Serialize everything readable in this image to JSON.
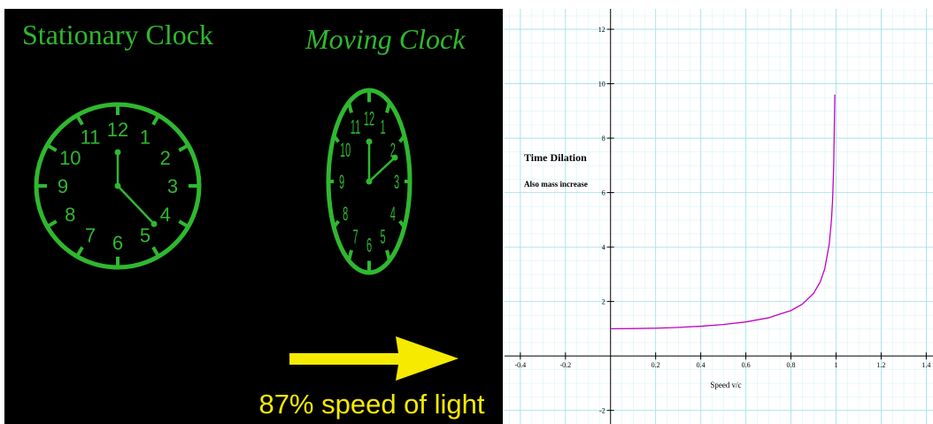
{
  "left_panel": {
    "stationary_title": "Stationary Clock",
    "moving_title": "Moving Clock",
    "numerals": [
      "12",
      "1",
      "2",
      "3",
      "4",
      "5",
      "6",
      "7",
      "8",
      "9",
      "10",
      "11"
    ],
    "caption": "87% speed of light"
  },
  "chart_data": {
    "type": "line",
    "title": "Time Dilation",
    "subtitle": "Also mass increase",
    "x_label": "Speed v/c",
    "x": [
      0,
      0.1,
      0.2,
      0.3,
      0.4,
      0.5,
      0.6,
      0.7,
      0.8,
      0.85,
      0.9,
      0.93,
      0.95,
      0.97,
      0.98,
      0.985,
      0.99,
      0.9946
    ],
    "series": [
      {
        "color": "#c400c4",
        "values": [
          1,
          1.005,
          1.021,
          1.048,
          1.091,
          1.155,
          1.25,
          1.4,
          1.667,
          1.898,
          2.294,
          2.721,
          3.203,
          4.113,
          5.025,
          5.795,
          7.089,
          9.6
        ]
      }
    ],
    "xlim": [
      -0.47,
      1.43
    ],
    "ylim": [
      -2.5,
      12.75
    ],
    "xticks": [
      -0.4,
      -0.2,
      0.2,
      0.4,
      0.6,
      0.8,
      1,
      1.2,
      1.4
    ],
    "yticks": [
      -2,
      2,
      4,
      6,
      8,
      10,
      12
    ],
    "grid": true
  }
}
